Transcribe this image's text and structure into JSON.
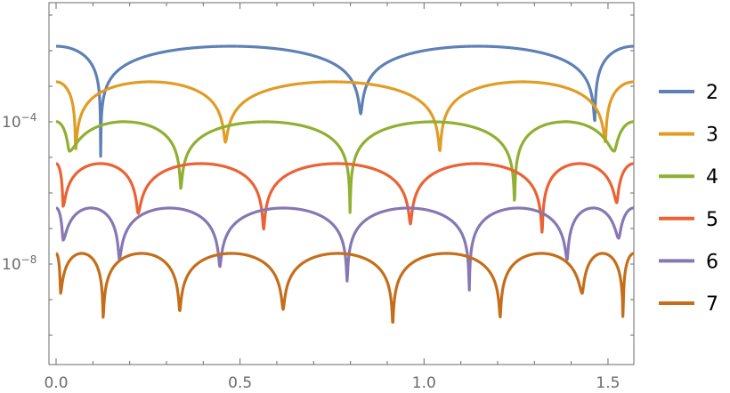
{
  "chart_data": {
    "type": "line",
    "title": "",
    "xlabel": "",
    "ylabel": "",
    "yscale": "log10",
    "xlim": [
      0,
      1.5708
    ],
    "ylim_log10": [
      -10.8,
      -0.65
    ],
    "x_ticks": [
      {
        "value": 0,
        "label": "0.0"
      },
      {
        "value": 0.5,
        "label": "0.5"
      },
      {
        "value": 1.0,
        "label": "1.0"
      },
      {
        "value": 1.5,
        "label": "1.5"
      }
    ],
    "y_ticks": [
      {
        "log10": -4,
        "base": "10",
        "exp": "−4"
      },
      {
        "log10": -8,
        "base": "10",
        "exp": "−8"
      }
    ],
    "legend_placement": "right",
    "series": [
      {
        "name": "2",
        "color": "#5e81b5",
        "peak_log10": -1.875,
        "zeros": [
          0.121,
          0.828,
          1.464
        ],
        "dip_log10": [
          -5.575,
          -3.775,
          -4.0
        ]
      },
      {
        "name": "3",
        "color": "#e19c24",
        "peak_log10": -2.875,
        "zeros": [
          0.053,
          0.46,
          1.043,
          1.493
        ],
        "dip_log10": [
          -4.825,
          -4.575,
          -4.825,
          -4.575
        ]
      },
      {
        "name": "4",
        "color": "#8fb032",
        "peak_log10": -4.0,
        "zeros": [
          0.036,
          0.339,
          0.799,
          1.246,
          1.517
        ],
        "dip_log10": [
          -4.825,
          -5.875,
          -6.575,
          -6.325,
          -4.825
        ]
      },
      {
        "name": "5",
        "color": "#eb6235",
        "peak_log10": -5.175,
        "zeros": [
          0.019,
          0.223,
          0.564,
          0.963,
          1.321,
          1.524
        ],
        "dip_log10": [
          -6.375,
          -6.575,
          -7.025,
          -6.875,
          -7.125,
          -6.275
        ]
      },
      {
        "name": "6",
        "color": "#8778b3",
        "peak_log10": -6.425,
        "zeros": [
          0.019,
          0.172,
          0.445,
          0.791,
          1.123,
          1.389,
          1.529
        ],
        "dip_log10": [
          -7.325,
          -7.875,
          -8.075,
          -8.475,
          -8.75,
          -7.875,
          -7.275
        ]
      },
      {
        "name": "7",
        "color": "#c56e1a",
        "peak_log10": -7.7,
        "zeros": [
          0.012,
          0.128,
          0.336,
          0.617,
          0.915,
          1.207,
          1.43,
          1.541
        ],
        "dip_log10": [
          -8.825,
          -9.5,
          -9.325,
          -9.275,
          -9.7,
          -9.5,
          -8.825,
          -9.725
        ]
      }
    ]
  }
}
